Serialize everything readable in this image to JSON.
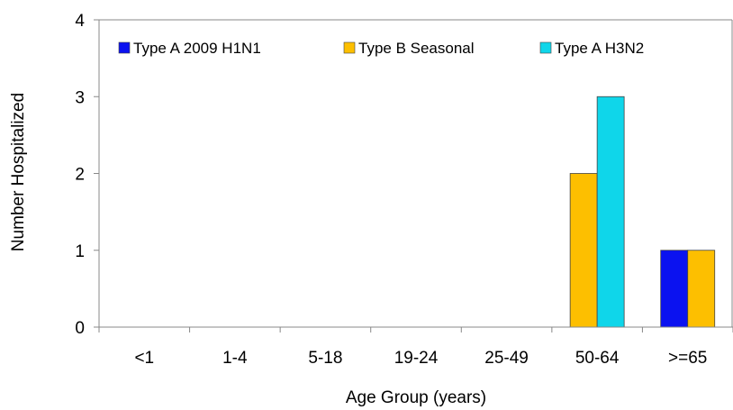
{
  "chart_data": {
    "type": "bar",
    "title": "",
    "xlabel": "Age Group (years)",
    "ylabel": "Number Hospitalized",
    "categories": [
      "<1",
      "1-4",
      "5-18",
      "19-24",
      "25-49",
      "50-64",
      ">=65"
    ],
    "ylim": [
      0,
      4
    ],
    "yticks": [
      "0",
      "1",
      "2",
      "3",
      "4"
    ],
    "grid": false,
    "legend_position": "top",
    "series": [
      {
        "name": "Type A 2009 H1N1",
        "values": [
          0,
          0,
          0,
          0,
          0,
          0,
          1
        ],
        "color": "#0b12f0"
      },
      {
        "name": "Type B Seasonal",
        "values": [
          0,
          0,
          0,
          0,
          0,
          2,
          1
        ],
        "color": "#fdbf00"
      },
      {
        "name": "Type A H3N2",
        "values": [
          0,
          0,
          0,
          0,
          0,
          3,
          0
        ],
        "color": "#0fd6ea"
      }
    ]
  }
}
